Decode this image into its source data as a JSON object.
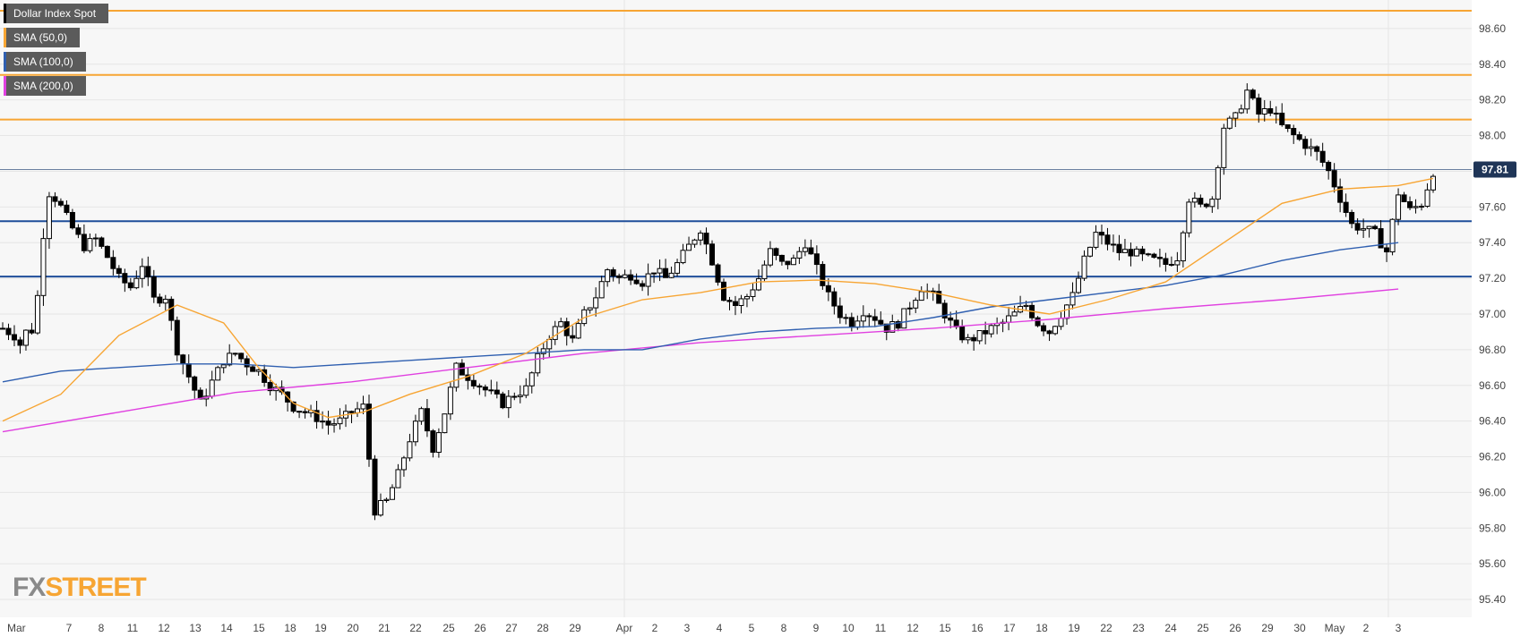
{
  "chart_data": {
    "type": "candlestick",
    "instrument": "Dollar Index Spot",
    "ylim": [
      95.3,
      98.76
    ],
    "yticks": [
      "98.60",
      "98.40",
      "98.20",
      "98.00",
      "97.80",
      "97.60",
      "97.40",
      "97.20",
      "97.00",
      "96.80",
      "96.60",
      "96.40",
      "96.20",
      "96.00",
      "95.80",
      "95.60",
      "95.40"
    ],
    "ytick_values": [
      98.6,
      98.4,
      98.2,
      98.0,
      97.8,
      97.6,
      97.4,
      97.2,
      97.0,
      96.8,
      96.6,
      96.4,
      96.2,
      96.0,
      95.8,
      95.6,
      95.4
    ],
    "xticks": [
      "Mar",
      "7",
      "8",
      "11",
      "12",
      "13",
      "14",
      "15",
      "18",
      "19",
      "20",
      "21",
      "22",
      "25",
      "26",
      "27",
      "28",
      "29",
      "Apr",
      "2",
      "3",
      "4",
      "5",
      "8",
      "9",
      "10",
      "11",
      "12",
      "15",
      "16",
      "17",
      "18",
      "19",
      "22",
      "23",
      "24",
      "25",
      "26",
      "29",
      "30",
      "May",
      "2",
      "3"
    ],
    "current_price": "97.81",
    "current_price_value": 97.81,
    "legend": [
      {
        "label": "Dollar Index Spot",
        "color": "#000000"
      },
      {
        "label": "SMA (50,0)",
        "color": "#f7a533"
      },
      {
        "label": "SMA (100,0)",
        "color": "#2f5fb0"
      },
      {
        "label": "SMA (200,0)",
        "color": "#e040e0"
      }
    ],
    "horizontal_levels": [
      {
        "value": 98.7,
        "color": "#f7a533"
      },
      {
        "value": 98.34,
        "color": "#f7a533"
      },
      {
        "value": 98.09,
        "color": "#f7a533"
      },
      {
        "value": 97.52,
        "color": "#1f4e9a"
      },
      {
        "value": 97.21,
        "color": "#1f4e9a"
      },
      {
        "value": 97.81,
        "color": "#6a7fa0"
      }
    ],
    "close_path": [
      [
        0,
        96.92
      ],
      [
        2,
        96.88
      ],
      [
        3,
        96.83
      ],
      [
        4,
        96.9
      ],
      [
        5,
        96.91
      ],
      [
        6,
        97.1
      ],
      [
        7,
        97.45
      ],
      [
        8,
        97.68
      ],
      [
        9,
        97.65
      ],
      [
        10,
        97.6
      ],
      [
        12,
        97.48
      ],
      [
        14,
        97.38
      ],
      [
        16,
        97.42
      ],
      [
        18,
        97.32
      ],
      [
        20,
        97.2
      ],
      [
        22,
        97.15
      ],
      [
        24,
        97.28
      ],
      [
        26,
        97.08
      ],
      [
        28,
        97.1
      ],
      [
        30,
        96.8
      ],
      [
        32,
        96.65
      ],
      [
        34,
        96.5
      ],
      [
        36,
        96.62
      ],
      [
        38,
        96.74
      ],
      [
        40,
        96.78
      ],
      [
        42,
        96.72
      ],
      [
        44,
        96.68
      ],
      [
        46,
        96.6
      ],
      [
        48,
        96.55
      ],
      [
        50,
        96.48
      ],
      [
        52,
        96.45
      ],
      [
        54,
        96.42
      ],
      [
        56,
        96.38
      ],
      [
        58,
        96.4
      ],
      [
        60,
        96.45
      ],
      [
        62,
        96.48
      ],
      [
        64,
        95.9
      ],
      [
        66,
        95.95
      ],
      [
        68,
        96.1
      ],
      [
        70,
        96.3
      ],
      [
        72,
        96.45
      ],
      [
        74,
        96.25
      ],
      [
        76,
        96.45
      ],
      [
        78,
        96.7
      ],
      [
        80,
        96.65
      ],
      [
        82,
        96.6
      ],
      [
        84,
        96.55
      ],
      [
        86,
        96.5
      ],
      [
        88,
        96.55
      ],
      [
        90,
        96.58
      ],
      [
        92,
        96.75
      ],
      [
        94,
        96.88
      ],
      [
        96,
        96.95
      ],
      [
        98,
        96.85
      ],
      [
        100,
        97.0
      ],
      [
        102,
        97.1
      ],
      [
        104,
        97.25
      ],
      [
        106,
        97.2
      ],
      [
        108,
        97.22
      ],
      [
        110,
        97.18
      ],
      [
        112,
        97.25
      ],
      [
        114,
        97.2
      ],
      [
        116,
        97.28
      ],
      [
        118,
        97.38
      ],
      [
        120,
        97.48
      ],
      [
        122,
        97.3
      ],
      [
        124,
        97.1
      ],
      [
        126,
        97.05
      ],
      [
        128,
        97.1
      ],
      [
        130,
        97.2
      ],
      [
        132,
        97.35
      ],
      [
        134,
        97.28
      ],
      [
        136,
        97.3
      ],
      [
        138,
        97.4
      ],
      [
        140,
        97.25
      ],
      [
        142,
        97.1
      ],
      [
        144,
        97.0
      ],
      [
        146,
        96.95
      ],
      [
        148,
        97.02
      ],
      [
        150,
        96.98
      ],
      [
        152,
        96.92
      ],
      [
        154,
        96.95
      ],
      [
        156,
        97.05
      ],
      [
        158,
        97.15
      ],
      [
        160,
        97.1
      ],
      [
        162,
        97.0
      ],
      [
        164,
        96.9
      ],
      [
        166,
        96.85
      ],
      [
        168,
        96.88
      ],
      [
        170,
        96.92
      ],
      [
        172,
        96.95
      ],
      [
        174,
        97.0
      ],
      [
        176,
        97.05
      ],
      [
        178,
        96.95
      ],
      [
        180,
        96.9
      ],
      [
        182,
        97.0
      ],
      [
        184,
        97.1
      ],
      [
        186,
        97.3
      ],
      [
        188,
        97.45
      ],
      [
        190,
        97.4
      ],
      [
        192,
        97.35
      ],
      [
        194,
        97.35
      ],
      [
        196,
        97.32
      ],
      [
        198,
        97.3
      ],
      [
        200,
        97.28
      ],
      [
        202,
        97.32
      ],
      [
        204,
        97.65
      ],
      [
        206,
        97.6
      ],
      [
        208,
        97.65
      ],
      [
        210,
        98.05
      ],
      [
        212,
        98.1
      ],
      [
        214,
        98.25
      ],
      [
        216,
        98.12
      ],
      [
        218,
        98.15
      ],
      [
        220,
        98.05
      ],
      [
        222,
        98.0
      ],
      [
        224,
        97.95
      ],
      [
        226,
        97.9
      ],
      [
        228,
        97.8
      ],
      [
        230,
        97.65
      ],
      [
        232,
        97.5
      ],
      [
        234,
        97.48
      ],
      [
        236,
        97.45
      ],
      [
        238,
        97.35
      ],
      [
        240,
        97.68
      ],
      [
        242,
        97.58
      ],
      [
        244,
        97.62
      ],
      [
        246,
        97.8
      ]
    ],
    "sma50": [
      [
        0,
        96.4
      ],
      [
        10,
        96.55
      ],
      [
        20,
        96.88
      ],
      [
        30,
        97.05
      ],
      [
        38,
        96.95
      ],
      [
        44,
        96.7
      ],
      [
        50,
        96.5
      ],
      [
        56,
        96.42
      ],
      [
        62,
        96.45
      ],
      [
        70,
        96.55
      ],
      [
        80,
        96.65
      ],
      [
        90,
        96.78
      ],
      [
        100,
        96.98
      ],
      [
        110,
        97.08
      ],
      [
        120,
        97.12
      ],
      [
        130,
        97.18
      ],
      [
        140,
        97.19
      ],
      [
        150,
        97.17
      ],
      [
        160,
        97.12
      ],
      [
        170,
        97.05
      ],
      [
        180,
        97.0
      ],
      [
        190,
        97.08
      ],
      [
        200,
        97.18
      ],
      [
        210,
        97.4
      ],
      [
        220,
        97.62
      ],
      [
        230,
        97.7
      ],
      [
        240,
        97.72
      ],
      [
        246,
        97.76
      ]
    ],
    "sma100": [
      [
        0,
        96.62
      ],
      [
        10,
        96.68
      ],
      [
        20,
        96.7
      ],
      [
        30,
        96.72
      ],
      [
        40,
        96.72
      ],
      [
        50,
        96.7
      ],
      [
        60,
        96.72
      ],
      [
        70,
        96.74
      ],
      [
        80,
        96.76
      ],
      [
        90,
        96.78
      ],
      [
        100,
        96.8
      ],
      [
        110,
        96.8
      ],
      [
        120,
        96.86
      ],
      [
        130,
        96.9
      ],
      [
        140,
        96.92
      ],
      [
        150,
        96.93
      ],
      [
        160,
        96.98
      ],
      [
        170,
        97.04
      ],
      [
        180,
        97.08
      ],
      [
        190,
        97.12
      ],
      [
        200,
        97.16
      ],
      [
        210,
        97.22
      ],
      [
        220,
        97.3
      ],
      [
        230,
        97.36
      ],
      [
        240,
        97.4
      ]
    ],
    "sma200": [
      [
        0,
        96.34
      ],
      [
        20,
        96.45
      ],
      [
        40,
        96.56
      ],
      [
        60,
        96.62
      ],
      [
        80,
        96.7
      ],
      [
        100,
        96.78
      ],
      [
        120,
        96.84
      ],
      [
        140,
        96.88
      ],
      [
        160,
        96.92
      ],
      [
        180,
        96.97
      ],
      [
        200,
        97.03
      ],
      [
        220,
        97.08
      ],
      [
        240,
        97.14
      ]
    ]
  },
  "branding": {
    "fx": "FX",
    "street": "STREET"
  }
}
